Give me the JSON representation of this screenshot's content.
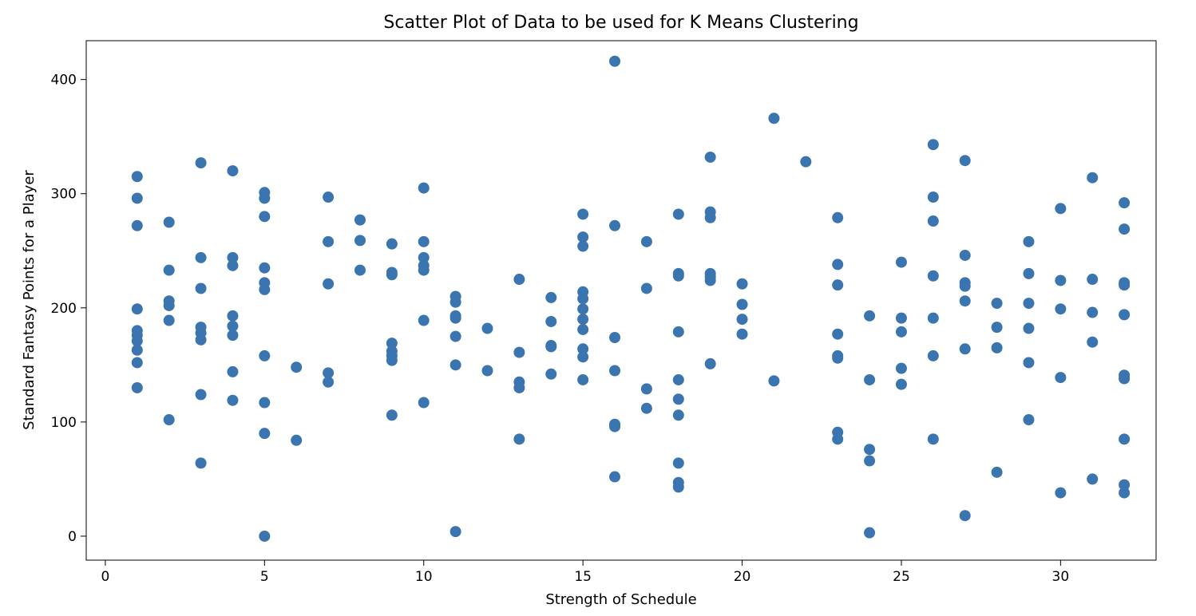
{
  "chart_data": {
    "type": "scatter",
    "title": "Scatter Plot of Data to be used for K Means Clustering",
    "xlabel": "Strength of Schedule",
    "ylabel": "Standard Fantasy Points for a Player",
    "xlim": [
      -0.6,
      33.0
    ],
    "ylim": [
      -21,
      434
    ],
    "xticks": [
      0,
      5,
      10,
      15,
      20,
      25,
      30
    ],
    "yticks": [
      0,
      100,
      200,
      300,
      400
    ],
    "grid": false,
    "marker_color": "#3a75b0",
    "points": [
      [
        1,
        315
      ],
      [
        1,
        296
      ],
      [
        1,
        272
      ],
      [
        1,
        199
      ],
      [
        1,
        180
      ],
      [
        1,
        176
      ],
      [
        1,
        171
      ],
      [
        1,
        163
      ],
      [
        1,
        152
      ],
      [
        1,
        130
      ],
      [
        2,
        275
      ],
      [
        2,
        233
      ],
      [
        2,
        206
      ],
      [
        2,
        202
      ],
      [
        2,
        189
      ],
      [
        2,
        102
      ],
      [
        3,
        327
      ],
      [
        3,
        244
      ],
      [
        3,
        217
      ],
      [
        3,
        183
      ],
      [
        3,
        178
      ],
      [
        3,
        172
      ],
      [
        3,
        124
      ],
      [
        3,
        64
      ],
      [
        4,
        320
      ],
      [
        4,
        244
      ],
      [
        4,
        237
      ],
      [
        4,
        193
      ],
      [
        4,
        184
      ],
      [
        4,
        176
      ],
      [
        4,
        144
      ],
      [
        4,
        119
      ],
      [
        5,
        301
      ],
      [
        5,
        296
      ],
      [
        5,
        280
      ],
      [
        5,
        235
      ],
      [
        5,
        222
      ],
      [
        5,
        216
      ],
      [
        5,
        158
      ],
      [
        5,
        117
      ],
      [
        5,
        90
      ],
      [
        5,
        0
      ],
      [
        6,
        148
      ],
      [
        6,
        84
      ],
      [
        7,
        297
      ],
      [
        7,
        258
      ],
      [
        7,
        221
      ],
      [
        7,
        143
      ],
      [
        7,
        135
      ],
      [
        8,
        277
      ],
      [
        8,
        259
      ],
      [
        8,
        233
      ],
      [
        9,
        256
      ],
      [
        9,
        231
      ],
      [
        9,
        229
      ],
      [
        9,
        169
      ],
      [
        9,
        162
      ],
      [
        9,
        158
      ],
      [
        9,
        154
      ],
      [
        9,
        106
      ],
      [
        10,
        305
      ],
      [
        10,
        258
      ],
      [
        10,
        244
      ],
      [
        10,
        237
      ],
      [
        10,
        233
      ],
      [
        10,
        189
      ],
      [
        10,
        117
      ],
      [
        11,
        210
      ],
      [
        11,
        205
      ],
      [
        11,
        193
      ],
      [
        11,
        191
      ],
      [
        11,
        175
      ],
      [
        11,
        150
      ],
      [
        11,
        4
      ],
      [
        12,
        182
      ],
      [
        12,
        145
      ],
      [
        13,
        225
      ],
      [
        13,
        161
      ],
      [
        13,
        135
      ],
      [
        13,
        130
      ],
      [
        13,
        85
      ],
      [
        14,
        209
      ],
      [
        14,
        188
      ],
      [
        14,
        167
      ],
      [
        14,
        166
      ],
      [
        14,
        142
      ],
      [
        15,
        282
      ],
      [
        15,
        262
      ],
      [
        15,
        254
      ],
      [
        15,
        214
      ],
      [
        15,
        208
      ],
      [
        15,
        199
      ],
      [
        15,
        190
      ],
      [
        15,
        181
      ],
      [
        15,
        164
      ],
      [
        15,
        157
      ],
      [
        15,
        137
      ],
      [
        16,
        416
      ],
      [
        16,
        272
      ],
      [
        16,
        174
      ],
      [
        16,
        145
      ],
      [
        16,
        98
      ],
      [
        16,
        96
      ],
      [
        16,
        52
      ],
      [
        17,
        258
      ],
      [
        17,
        217
      ],
      [
        17,
        129
      ],
      [
        17,
        112
      ],
      [
        18,
        282
      ],
      [
        18,
        230
      ],
      [
        18,
        228
      ],
      [
        18,
        179
      ],
      [
        18,
        137
      ],
      [
        18,
        120
      ],
      [
        18,
        106
      ],
      [
        18,
        64
      ],
      [
        18,
        47
      ],
      [
        18,
        43
      ],
      [
        19,
        332
      ],
      [
        19,
        284
      ],
      [
        19,
        279
      ],
      [
        19,
        230
      ],
      [
        19,
        227
      ],
      [
        19,
        224
      ],
      [
        19,
        151
      ],
      [
        20,
        221
      ],
      [
        20,
        203
      ],
      [
        20,
        190
      ],
      [
        20,
        177
      ],
      [
        21,
        366
      ],
      [
        21,
        136
      ],
      [
        22,
        328
      ],
      [
        23,
        279
      ],
      [
        23,
        238
      ],
      [
        23,
        220
      ],
      [
        23,
        177
      ],
      [
        23,
        158
      ],
      [
        23,
        156
      ],
      [
        23,
        91
      ],
      [
        23,
        85
      ],
      [
        24,
        193
      ],
      [
        24,
        137
      ],
      [
        24,
        76
      ],
      [
        24,
        66
      ],
      [
        24,
        3
      ],
      [
        25,
        240
      ],
      [
        25,
        191
      ],
      [
        25,
        179
      ],
      [
        25,
        147
      ],
      [
        25,
        133
      ],
      [
        26,
        343
      ],
      [
        26,
        297
      ],
      [
        26,
        276
      ],
      [
        26,
        228
      ],
      [
        26,
        191
      ],
      [
        26,
        158
      ],
      [
        26,
        85
      ],
      [
        27,
        329
      ],
      [
        27,
        246
      ],
      [
        27,
        222
      ],
      [
        27,
        219
      ],
      [
        27,
        206
      ],
      [
        27,
        164
      ],
      [
        27,
        18
      ],
      [
        28,
        204
      ],
      [
        28,
        183
      ],
      [
        28,
        165
      ],
      [
        28,
        56
      ],
      [
        29,
        258
      ],
      [
        29,
        230
      ],
      [
        29,
        204
      ],
      [
        29,
        182
      ],
      [
        29,
        152
      ],
      [
        29,
        102
      ],
      [
        30,
        287
      ],
      [
        30,
        224
      ],
      [
        30,
        199
      ],
      [
        30,
        139
      ],
      [
        30,
        38
      ],
      [
        31,
        314
      ],
      [
        31,
        225
      ],
      [
        31,
        196
      ],
      [
        31,
        170
      ],
      [
        31,
        50
      ],
      [
        32,
        292
      ],
      [
        32,
        269
      ],
      [
        32,
        222
      ],
      [
        32,
        220
      ],
      [
        32,
        194
      ],
      [
        32,
        141
      ],
      [
        32,
        138
      ],
      [
        32,
        85
      ],
      [
        32,
        45
      ],
      [
        32,
        38
      ]
    ]
  }
}
